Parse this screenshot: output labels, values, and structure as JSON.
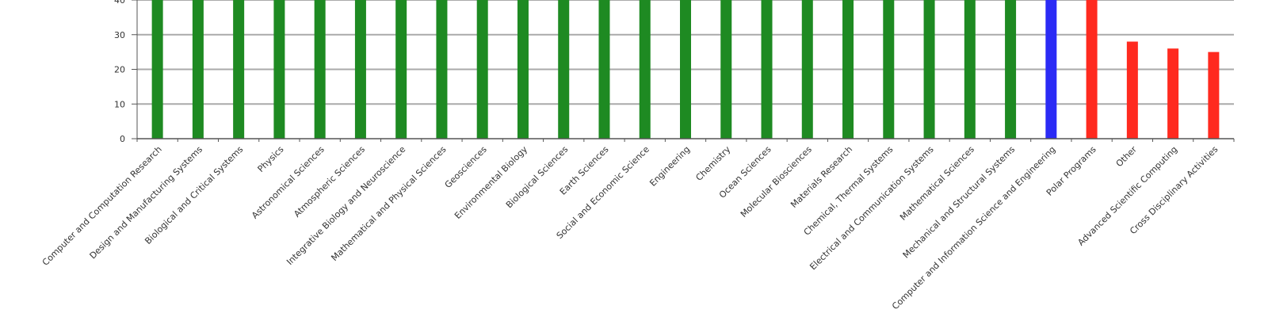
{
  "chart_data": {
    "type": "bar",
    "title": "",
    "xlabel": "",
    "ylabel": "",
    "ylim": [
      0,
      40
    ],
    "yticks": [
      0,
      10,
      20,
      30,
      40
    ],
    "grid": true,
    "colors": {
      "green": "#1e8a22",
      "blue": "#2b2bf5",
      "red": "#ff2a1f",
      "grid": "#aaaaaa",
      "axis": "#555555"
    },
    "categories": [
      "Computer and Computation Research",
      "Design and Manufacturing Systems",
      "Biological and Critical Systems",
      "Physics",
      "Astronomical Sciences",
      "Atmospheric Sciences",
      "Integrative Biology and Neuroscience",
      "Mathematical and Physical Sciences",
      "Geosciences",
      "Environmental Biology",
      "Biological Sciences",
      "Earth Sciences",
      "Social and Economic Science",
      "Engineering",
      "Chemistry",
      "Ocean Sciences",
      "Molecular Biosciences",
      "Materials Research",
      "Chemical, Thermal Systems",
      "Electrical and Communication Systems",
      "Mathematical Sciences",
      "Mechanical and Structural Systems",
      "Computer and Information Science and Engineering",
      "Polar Programs",
      "Other",
      "Advanced Scientific Computing",
      "Cross Disciplinary Activities"
    ],
    "values": [
      40,
      40,
      40,
      40,
      40,
      40,
      40,
      40,
      40,
      40,
      40,
      40,
      40,
      40,
      40,
      40,
      40,
      40,
      40,
      40,
      40,
      40,
      40,
      40,
      28,
      26,
      25
    ],
    "bar_colors": [
      "green",
      "green",
      "green",
      "green",
      "green",
      "green",
      "green",
      "green",
      "green",
      "green",
      "green",
      "green",
      "green",
      "green",
      "green",
      "green",
      "green",
      "green",
      "green",
      "green",
      "green",
      "green",
      "blue",
      "red",
      "red",
      "red",
      "red"
    ]
  }
}
